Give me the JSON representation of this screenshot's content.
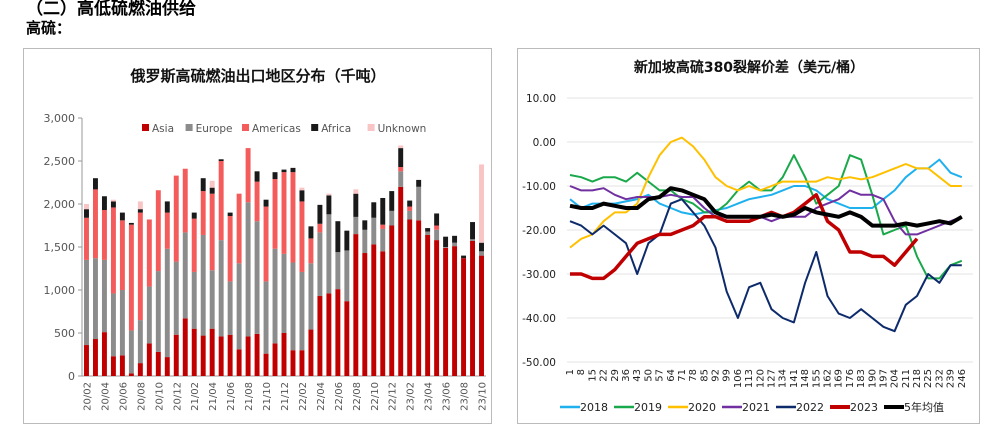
{
  "section_heading": "（二）高低硫燃油供给",
  "subheading": "高硫：",
  "chart_data": [
    {
      "type": "bar",
      "stacked": true,
      "title": "俄罗斯高硫燃油出口地区分布（千吨）",
      "ylim": [
        0,
        3000
      ],
      "yticks": [
        "0",
        "500",
        "1,000",
        "1,500",
        "2,000",
        "2,500",
        "3,000"
      ],
      "legend_position": "top",
      "xtick_labels": [
        "20/02",
        "20/04",
        "20/06",
        "20/08",
        "20/10",
        "20/12",
        "21/02",
        "21/04",
        "21/06",
        "21/08",
        "21/10",
        "21/12",
        "22/02",
        "22/04",
        "22/06",
        "22/08",
        "22/10",
        "22/12",
        "23/02",
        "23/04",
        "23/06",
        "23/08",
        "23/10"
      ],
      "categories": [
        "20/02",
        "20/03",
        "20/04",
        "20/05",
        "20/06",
        "20/07",
        "20/08",
        "20/09",
        "20/10",
        "20/11",
        "20/12",
        "21/01",
        "21/02",
        "21/03",
        "21/04",
        "21/05",
        "21/06",
        "21/07",
        "21/08",
        "21/09",
        "21/10",
        "21/11",
        "21/12",
        "22/01",
        "22/02",
        "22/03",
        "22/04",
        "22/05",
        "22/06",
        "22/07",
        "22/08",
        "22/09",
        "22/10",
        "22/11",
        "22/12",
        "23/01",
        "23/02",
        "23/03",
        "23/04",
        "23/05",
        "23/06",
        "23/07",
        "23/08",
        "23/09",
        "23/10"
      ],
      "series": [
        {
          "name": "Asia",
          "color": "#c00000",
          "values": [
            360,
            430,
            510,
            230,
            240,
            30,
            150,
            380,
            280,
            220,
            480,
            670,
            550,
            470,
            550,
            460,
            480,
            310,
            460,
            490,
            260,
            380,
            500,
            300,
            300,
            540,
            930,
            960,
            1010,
            870,
            1650,
            1430,
            1530,
            1450,
            1750,
            2200,
            1820,
            1810,
            1640,
            1580,
            1490,
            1510,
            1370,
            1570,
            1400
          ]
        },
        {
          "name": "Europe",
          "color": "#8c8c8c",
          "values": [
            990,
            940,
            840,
            730,
            760,
            500,
            500,
            660,
            940,
            1260,
            850,
            1000,
            660,
            1170,
            680,
            1120,
            620,
            1000,
            1560,
            1310,
            840,
            1100,
            920,
            1020,
            910,
            770,
            740,
            920,
            430,
            590,
            200,
            270,
            310,
            260,
            170,
            180,
            100,
            390,
            40,
            120,
            10,
            40,
            0,
            20,
            50
          ]
        },
        {
          "name": "Americas",
          "color": "#f45b5b",
          "values": [
            490,
            800,
            580,
            1000,
            810,
            1230,
            1250,
            780,
            940,
            420,
            1000,
            740,
            620,
            510,
            890,
            920,
            760,
            810,
            630,
            460,
            870,
            810,
            950,
            1050,
            820,
            290,
            100,
            0,
            0,
            0,
            0,
            0,
            0,
            50,
            0,
            50,
            50,
            0,
            0,
            50,
            0,
            0,
            0,
            0,
            0
          ]
        },
        {
          "name": "Africa",
          "color": "#1a1a1a",
          "values": [
            100,
            130,
            160,
            70,
            90,
            20,
            40,
            0,
            0,
            130,
            0,
            0,
            70,
            150,
            70,
            20,
            40,
            0,
            0,
            120,
            80,
            80,
            30,
            50,
            130,
            140,
            220,
            220,
            360,
            230,
            270,
            110,
            180,
            310,
            230,
            220,
            70,
            80,
            40,
            140,
            120,
            80,
            30,
            200,
            100
          ]
        },
        {
          "name": "Unknown",
          "color": "#f9c4c4",
          "values": [
            60,
            0,
            0,
            20,
            0,
            0,
            90,
            0,
            0,
            0,
            0,
            0,
            0,
            0,
            80,
            0,
            0,
            0,
            0,
            0,
            0,
            0,
            0,
            0,
            30,
            0,
            0,
            20,
            0,
            0,
            50,
            0,
            0,
            0,
            0,
            30,
            0,
            0,
            0,
            0,
            0,
            0,
            0,
            0,
            910
          ]
        }
      ]
    },
    {
      "type": "line",
      "title": "新加坡高硫380裂解价差（美元/桶）",
      "ylim": [
        -50,
        10
      ],
      "yticks": [
        "-50.00",
        "-40.00",
        "-30.00",
        "-20.00",
        "-10.00",
        "0.00",
        "10.00"
      ],
      "grid": true,
      "legend_position": "bottom",
      "x": [
        1,
        8,
        15,
        22,
        29,
        36,
        43,
        50,
        57,
        64,
        71,
        78,
        85,
        92,
        99,
        106,
        113,
        120,
        127,
        134,
        141,
        148,
        155,
        162,
        169,
        176,
        183,
        190,
        197,
        204,
        211,
        218,
        225,
        232,
        239,
        246
      ],
      "series": [
        {
          "name": "2018",
          "color": "#1fb0ee",
          "width": 2,
          "values": [
            -13,
            -15,
            -14,
            -14,
            -14,
            -13.5,
            -13,
            -12,
            -14,
            -15,
            -16,
            -16.5,
            -16,
            -15.5,
            -15,
            -14,
            -13,
            -12.5,
            -12,
            -11,
            -10,
            -10,
            -11,
            -13,
            -14,
            -15,
            -15,
            -15,
            -13,
            -11,
            -8,
            -6,
            -6,
            -4,
            -7,
            -8
          ]
        },
        {
          "name": "2019",
          "color": "#19a84a",
          "width": 2,
          "values": [
            -7.5,
            -8,
            -9,
            -8,
            -8,
            -9,
            -7,
            -9,
            -11,
            -11,
            -13,
            -14,
            -16,
            -16,
            -14,
            -11,
            -9,
            -11,
            -11,
            -8,
            -3,
            -8,
            -14,
            -12,
            -10,
            -3,
            -4,
            -12,
            -21,
            -20,
            -19,
            -26,
            -31,
            -31,
            -28,
            -27
          ]
        },
        {
          "name": "2020",
          "color": "#ffc000",
          "width": 2,
          "values": [
            -24,
            -22,
            -21,
            -18,
            -16,
            -16,
            -14,
            -8,
            -3,
            0,
            1,
            -1,
            -4,
            -8,
            -10,
            -11,
            -10,
            -11,
            -10,
            -9,
            -9,
            -9,
            -9,
            -8,
            -8.5,
            -8,
            -8.5,
            -8,
            -7,
            -6,
            -5,
            -6,
            -6,
            -8,
            -10,
            -10
          ]
        },
        {
          "name": "2021",
          "color": "#7030a0",
          "width": 2,
          "values": [
            -10,
            -11,
            -11,
            -10.5,
            -12,
            -13,
            -12.5,
            -12.5,
            -12.5,
            -12,
            -12.5,
            -12.5,
            -15,
            -17,
            -17,
            -17,
            -17,
            -17,
            -18,
            -17,
            -17,
            -17,
            -15,
            -14,
            -13,
            -11,
            -12,
            -12,
            -13,
            -18,
            -21,
            -21,
            -20,
            -19,
            -18,
            -17
          ]
        },
        {
          "name": "2022",
          "color": "#0d2a6b",
          "width": 2,
          "values": [
            -18,
            -19,
            -21,
            -19,
            -21,
            -23,
            -30,
            -23,
            -21,
            -14,
            -13,
            -16,
            -19,
            -24,
            -34,
            -40,
            -33,
            -32,
            -38,
            -40,
            -41,
            -32,
            -25,
            -35,
            -39,
            -40,
            -38,
            -40,
            -42,
            -43,
            -37,
            -35,
            -30,
            -32,
            -28,
            -28
          ]
        },
        {
          "name": "2023",
          "color": "#c00000",
          "width": 3.5,
          "values": [
            -30,
            -30,
            -31,
            -31,
            -29,
            -26,
            -23,
            -22,
            -21,
            -21,
            -20,
            -19,
            -17,
            -17,
            -18,
            -18,
            -18,
            -17,
            -16,
            -17,
            -16,
            -14,
            -12,
            -18,
            -20,
            -25,
            -25,
            -26,
            -26,
            -28,
            -25,
            -22,
            null,
            null,
            null,
            null
          ]
        },
        {
          "name": "5年均值",
          "color": "#000000",
          "width": 4,
          "values": [
            -14.5,
            -15,
            -15,
            -14,
            -14.5,
            -15,
            -15,
            -13,
            -12.5,
            -10.5,
            -11,
            -12,
            -13,
            -16,
            -17,
            -17,
            -17,
            -17,
            -16.5,
            -17,
            -16.5,
            -15,
            -16,
            -16.5,
            -17,
            -16,
            -17,
            -19,
            -19,
            -19,
            -18.5,
            -19,
            -18.5,
            -18,
            -18.5,
            -17
          ]
        }
      ]
    }
  ]
}
